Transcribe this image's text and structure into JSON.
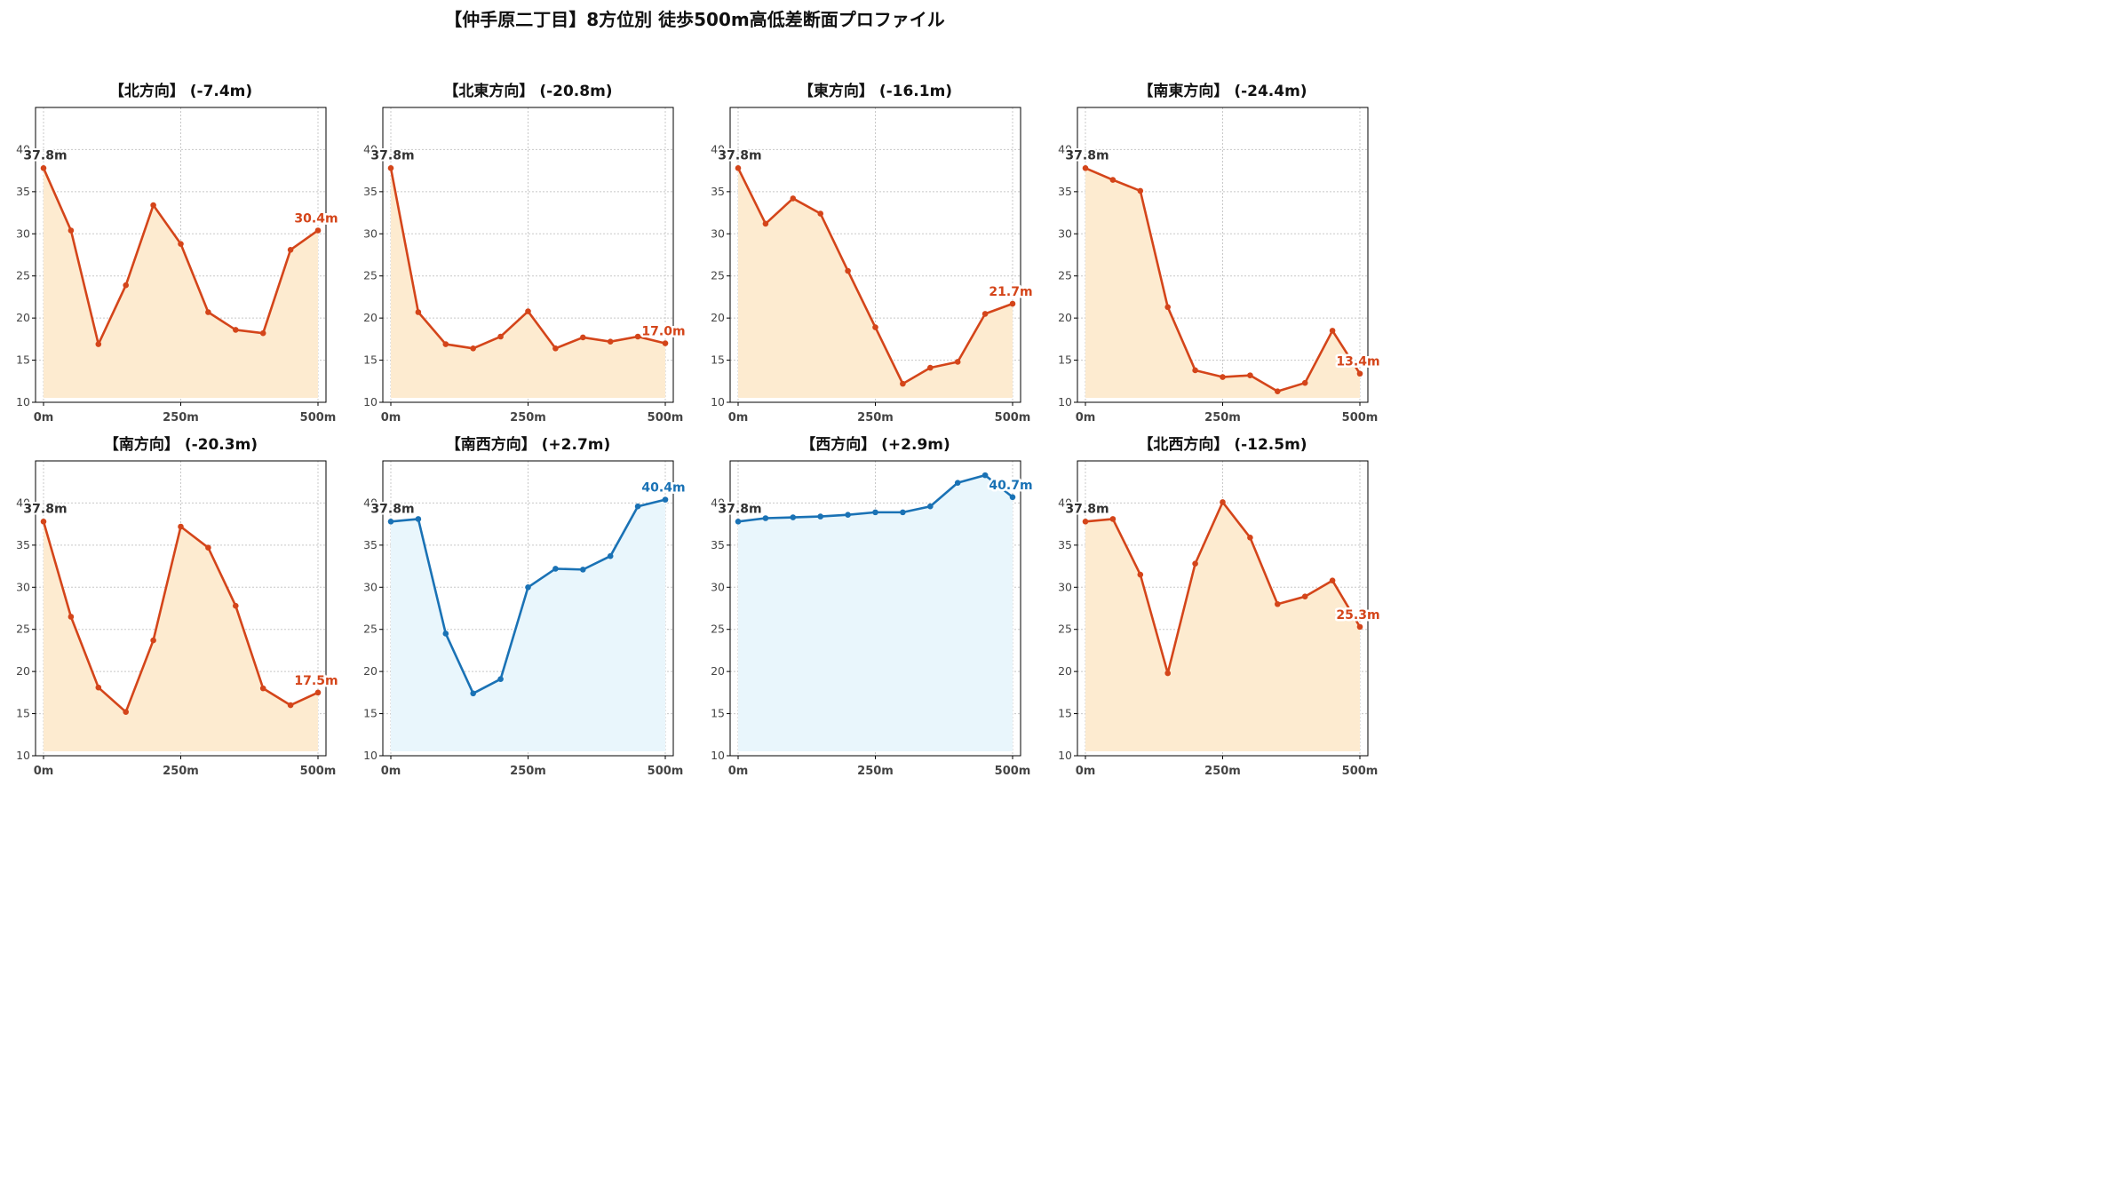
{
  "title": "【仲手原二丁目】8方位別 徒歩500m高低差断面プロファイル",
  "colors": {
    "down_line": "#d4451a",
    "down_fill": "#fdebd0",
    "up_line": "#1a72b5",
    "up_fill": "#e9f6fc",
    "start_label": "#333333",
    "axis": "#000000",
    "grid": "#c8c8c8",
    "tick_label": "#444444"
  },
  "chart_data": [
    {
      "type": "line",
      "title": "【北方向】 (-7.4m)",
      "trend": "down",
      "x": [
        0,
        50,
        100,
        150,
        200,
        250,
        300,
        350,
        400,
        450,
        500
      ],
      "values": [
        37.8,
        30.4,
        16.9,
        23.9,
        33.4,
        28.8,
        20.7,
        18.6,
        18.2,
        28.1,
        30.4
      ],
      "start_label": "37.8m",
      "end_label": "30.4m",
      "ylim": [
        10,
        45
      ],
      "yticks": [
        "10",
        "15",
        "20",
        "25",
        "30",
        "35",
        "40"
      ],
      "xticks": [
        "0m",
        "250m",
        "500m"
      ],
      "xlim": [
        0,
        500
      ],
      "grid": true
    },
    {
      "type": "line",
      "title": "【北東方向】 (-20.8m)",
      "trend": "down",
      "x": [
        0,
        50,
        100,
        150,
        200,
        250,
        300,
        350,
        400,
        450,
        500
      ],
      "values": [
        37.8,
        20.7,
        16.9,
        16.4,
        17.8,
        20.8,
        16.4,
        17.7,
        17.2,
        17.8,
        17.0
      ],
      "start_label": "37.8m",
      "end_label": "17.0m",
      "ylim": [
        10,
        45
      ],
      "yticks": [
        "10",
        "15",
        "20",
        "25",
        "30",
        "35",
        "40"
      ],
      "xticks": [
        "0m",
        "250m",
        "500m"
      ],
      "xlim": [
        0,
        500
      ],
      "grid": true
    },
    {
      "type": "line",
      "title": "【東方向】 (-16.1m)",
      "trend": "down",
      "x": [
        0,
        50,
        100,
        150,
        200,
        250,
        300,
        350,
        400,
        450,
        500
      ],
      "values": [
        37.8,
        31.2,
        34.2,
        32.4,
        25.6,
        18.9,
        12.2,
        14.1,
        14.8,
        20.5,
        21.7
      ],
      "start_label": "37.8m",
      "end_label": "21.7m",
      "ylim": [
        10,
        45
      ],
      "yticks": [
        "10",
        "15",
        "20",
        "25",
        "30",
        "35",
        "40"
      ],
      "xticks": [
        "0m",
        "250m",
        "500m"
      ],
      "xlim": [
        0,
        500
      ],
      "grid": true
    },
    {
      "type": "line",
      "title": "【南東方向】 (-24.4m)",
      "trend": "down",
      "x": [
        0,
        50,
        100,
        150,
        200,
        250,
        300,
        350,
        400,
        450,
        500
      ],
      "values": [
        37.8,
        36.4,
        35.1,
        21.3,
        13.8,
        13.0,
        13.2,
        11.3,
        12.3,
        18.5,
        13.4
      ],
      "start_label": "37.8m",
      "end_label": "13.4m",
      "ylim": [
        10,
        45
      ],
      "yticks": [
        "10",
        "15",
        "20",
        "25",
        "30",
        "35",
        "40"
      ],
      "xticks": [
        "0m",
        "250m",
        "500m"
      ],
      "xlim": [
        0,
        500
      ],
      "grid": true
    },
    {
      "type": "line",
      "title": "【南方向】 (-20.3m)",
      "trend": "down",
      "x": [
        0,
        50,
        100,
        150,
        200,
        250,
        300,
        350,
        400,
        450,
        500
      ],
      "values": [
        37.8,
        26.5,
        18.1,
        15.2,
        23.7,
        37.2,
        34.7,
        27.8,
        18.0,
        16.0,
        17.5
      ],
      "start_label": "37.8m",
      "end_label": "17.5m",
      "ylim": [
        10,
        45
      ],
      "yticks": [
        "10",
        "15",
        "20",
        "25",
        "30",
        "35",
        "40"
      ],
      "xticks": [
        "0m",
        "250m",
        "500m"
      ],
      "xlim": [
        0,
        500
      ],
      "grid": true
    },
    {
      "type": "line",
      "title": "【南西方向】 (+2.7m)",
      "trend": "up",
      "x": [
        0,
        50,
        100,
        150,
        200,
        250,
        300,
        350,
        400,
        450,
        500
      ],
      "values": [
        37.8,
        38.1,
        24.5,
        17.4,
        19.1,
        30.0,
        32.2,
        32.1,
        33.7,
        39.6,
        40.4
      ],
      "start_label": "37.8m",
      "end_label": "40.4m",
      "ylim": [
        10,
        45
      ],
      "yticks": [
        "10",
        "15",
        "20",
        "25",
        "30",
        "35",
        "40"
      ],
      "xticks": [
        "0m",
        "250m",
        "500m"
      ],
      "xlim": [
        0,
        500
      ],
      "grid": true
    },
    {
      "type": "line",
      "title": "【西方向】 (+2.9m)",
      "trend": "up",
      "x": [
        0,
        50,
        100,
        150,
        200,
        250,
        300,
        350,
        400,
        450,
        500
      ],
      "values": [
        37.8,
        38.2,
        38.3,
        38.4,
        38.6,
        38.9,
        38.9,
        39.6,
        42.4,
        43.3,
        40.7
      ],
      "start_label": "37.8m",
      "end_label": "40.7m",
      "ylim": [
        10,
        45
      ],
      "yticks": [
        "10",
        "15",
        "20",
        "25",
        "30",
        "35",
        "40"
      ],
      "xticks": [
        "0m",
        "250m",
        "500m"
      ],
      "xlim": [
        0,
        500
      ],
      "grid": true
    },
    {
      "type": "line",
      "title": "【北西方向】 (-12.5m)",
      "trend": "down",
      "x": [
        0,
        50,
        100,
        150,
        200,
        250,
        300,
        350,
        400,
        450,
        500
      ],
      "values": [
        37.8,
        38.1,
        31.5,
        19.8,
        32.8,
        40.1,
        35.9,
        28.0,
        28.9,
        30.8,
        25.3
      ],
      "start_label": "37.8m",
      "end_label": "25.3m",
      "ylim": [
        10,
        45
      ],
      "yticks": [
        "10",
        "15",
        "20",
        "25",
        "30",
        "35",
        "40"
      ],
      "xticks": [
        "0m",
        "250m",
        "500m"
      ],
      "xlim": [
        0,
        500
      ],
      "grid": true
    }
  ]
}
